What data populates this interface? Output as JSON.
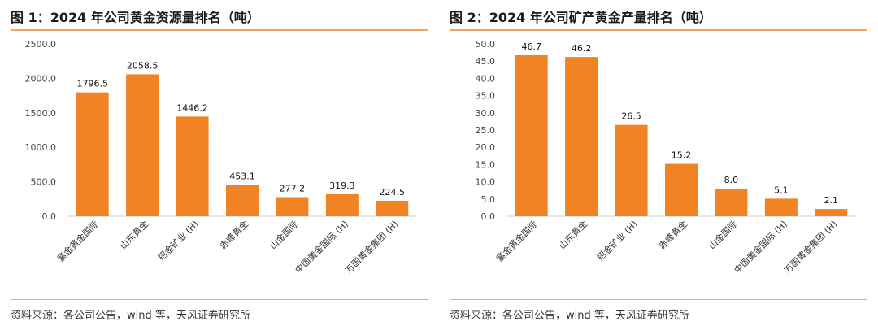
{
  "left": {
    "title": "图 1：2024 年公司黄金资源量排名（吨）",
    "source": "资料来源：各公司公告，wind 等，天风证券研究所"
  },
  "right": {
    "title": "图 2：2024 年公司矿产黄金产量排名（吨）",
    "source": "资料来源：各公司公告，wind 等，天风证券研究所"
  },
  "chart_data": [
    {
      "type": "bar",
      "title": "图 1：2024 年公司黄金资源量排名（吨）",
      "categories": [
        "紫金黄金国际",
        "山东黄金",
        "招金矿业 (H)",
        "赤峰黄金",
        "山金国际",
        "中国黄金国际 (H)",
        "万国黄金集团 (H)"
      ],
      "values": [
        1796.5,
        2058.5,
        1446.2,
        453.1,
        277.2,
        319.3,
        224.5
      ],
      "value_labels": [
        "1796.5",
        "2058.5",
        "1446.2",
        "453.1",
        "277.2",
        "319.3",
        "224.5"
      ],
      "yticks": [
        "0.0",
        "500.0",
        "1000.0",
        "1500.0",
        "2000.0",
        "2500.0"
      ],
      "ylim": [
        0,
        2500
      ],
      "bar_color": "#f08424",
      "grid": false,
      "legend": "none"
    },
    {
      "type": "bar",
      "title": "图 2：2024 年公司矿产黄金产量排名（吨）",
      "categories": [
        "紫金黄金国际",
        "山东黄金",
        "招金矿业 (H)",
        "赤峰黄金",
        "山金国际",
        "中国黄金国际 (H)",
        "万国黄金集团 (H)"
      ],
      "values": [
        46.7,
        46.2,
        26.5,
        15.2,
        8.0,
        5.1,
        2.1
      ],
      "value_labels": [
        "46.7",
        "46.2",
        "26.5",
        "15.2",
        "8.0",
        "5.1",
        "2.1"
      ],
      "yticks": [
        "0.0",
        "5.0",
        "10.0",
        "15.0",
        "20.0",
        "25.0",
        "30.0",
        "35.0",
        "40.0",
        "45.0",
        "50.0"
      ],
      "ylim": [
        0,
        50
      ],
      "bar_color": "#f08424",
      "grid": false,
      "legend": "none"
    }
  ]
}
